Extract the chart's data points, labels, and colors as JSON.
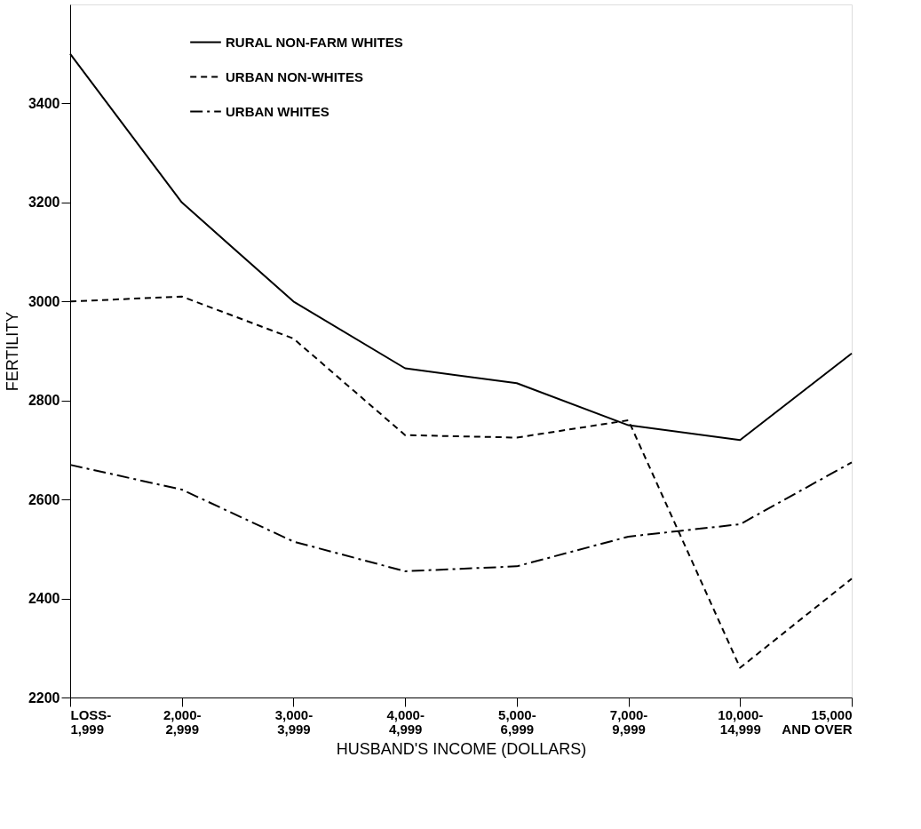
{
  "chart_data": {
    "type": "line",
    "xlabel": "HUSBAND'S INCOME (DOLLARS)",
    "ylabel": "FERTILITY",
    "categories": [
      "LOSS-\n1,999",
      "2,000-\n2,999",
      "3,000-\n3,999",
      "4,000-\n4,999",
      "5,000-\n6,999",
      "7,000-\n9,999",
      "10,000-\n14,999",
      "15,000\nAND OVER"
    ],
    "series": [
      {
        "name": "RURAL NON-FARM WHITES",
        "color": "#000000",
        "line_style": "solid",
        "values": [
          3500,
          3200,
          3000,
          2865,
          2835,
          2750,
          2720,
          2895
        ]
      },
      {
        "name": "URBAN NON-WHITES",
        "color": "#000000",
        "line_style": "dashed",
        "values": [
          3000,
          3010,
          2925,
          2730,
          2725,
          2760,
          2260,
          2440
        ]
      },
      {
        "name": "URBAN WHITES",
        "color": "#000000",
        "line_style": "dashdot",
        "values": [
          2670,
          2620,
          2515,
          2455,
          2465,
          2525,
          2550,
          2675
        ]
      }
    ],
    "ylim": [
      2200,
      3600
    ],
    "yticks": [
      2200,
      2400,
      2600,
      2800,
      3000,
      3200,
      3400
    ],
    "grid": false,
    "legend": "top left",
    "marker": "none"
  }
}
